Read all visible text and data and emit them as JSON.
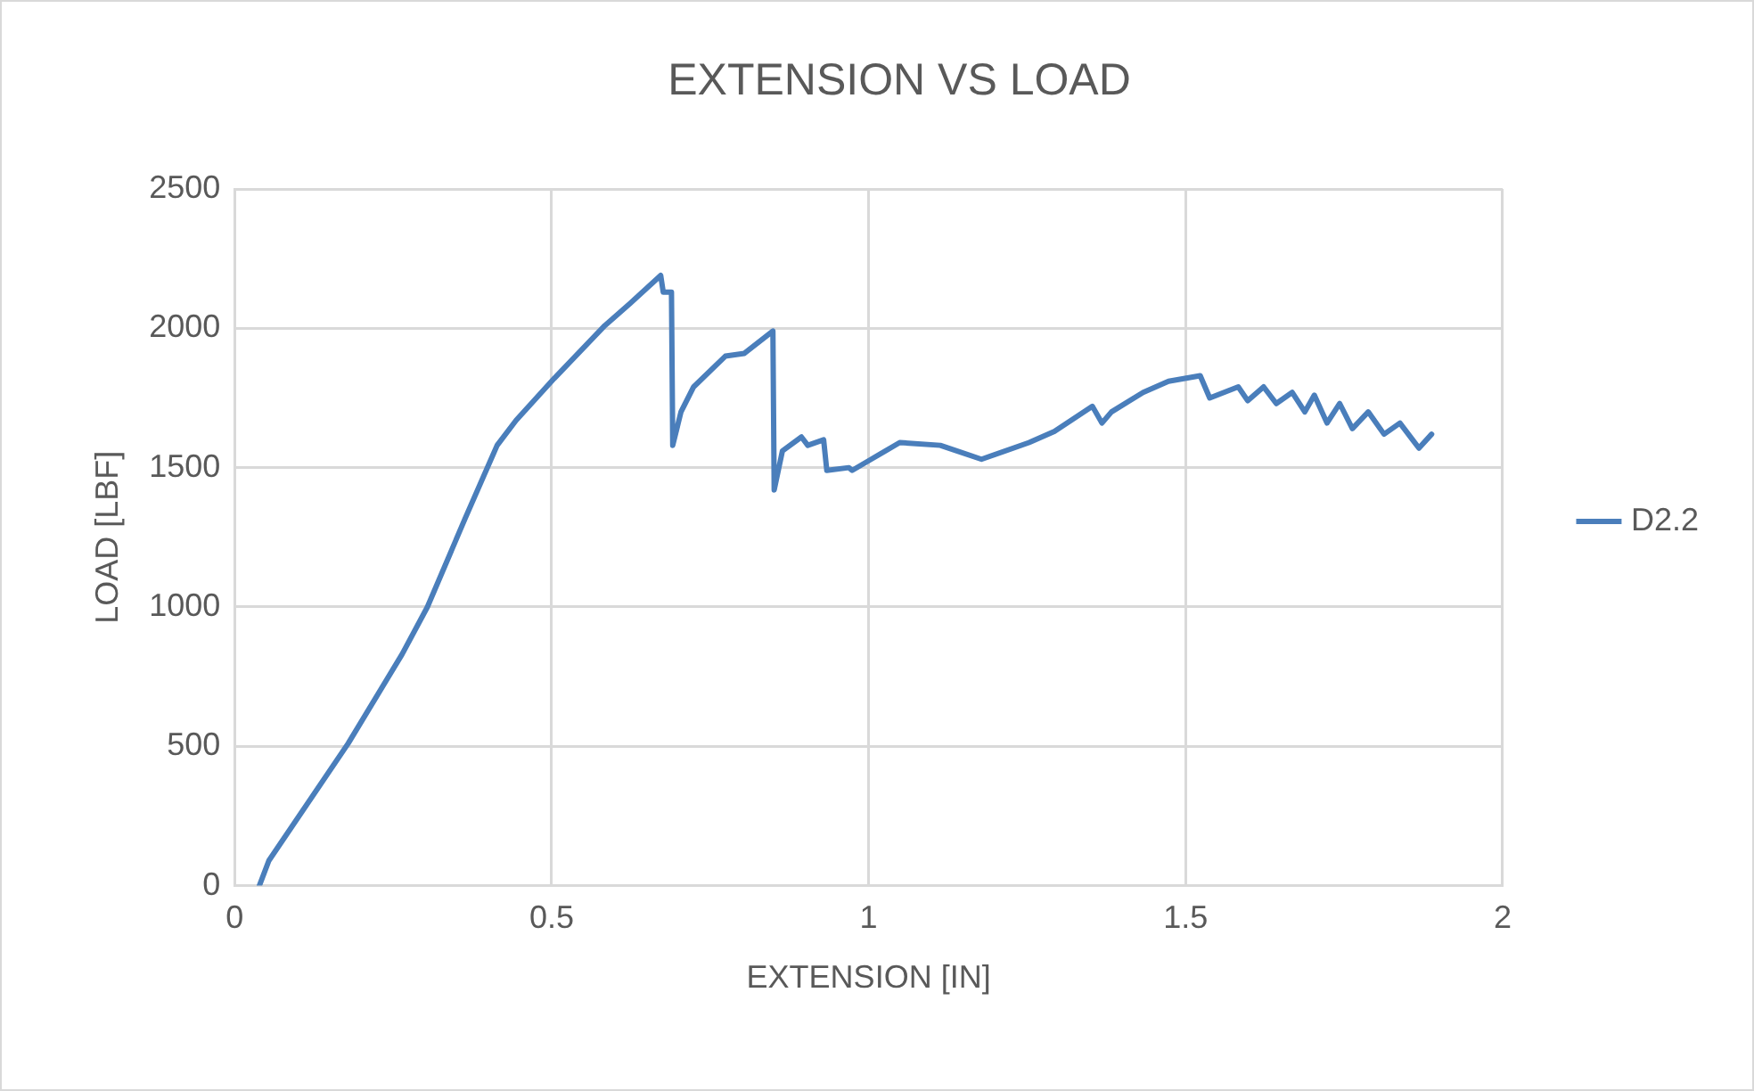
{
  "chart_data": {
    "type": "line",
    "title": "EXTENSION VS LOAD",
    "xlabel": "EXTENSION [IN]",
    "ylabel": "LOAD [LBF]",
    "xlim": [
      0,
      2
    ],
    "xticks": [
      0,
      0.5,
      1,
      1.5,
      2
    ],
    "ylim": [
      0,
      2500
    ],
    "yticks": [
      0,
      500,
      1000,
      1500,
      2000,
      2500
    ],
    "grid": true,
    "legend": "right",
    "marker": "none",
    "line_style": "solid",
    "series": [
      {
        "name": "D2.2",
        "color": "#4a7ebb",
        "x": [
          0.039,
          0.054,
          0.179,
          0.264,
          0.304,
          0.364,
          0.414,
          0.444,
          0.504,
          0.584,
          0.624,
          0.672,
          0.676,
          0.689,
          0.691,
          0.704,
          0.724,
          0.774,
          0.804,
          0.849,
          0.851,
          0.864,
          0.894,
          0.904,
          0.929,
          0.934,
          0.969,
          0.974,
          1.004,
          1.049,
          1.113,
          1.178,
          1.253,
          1.293,
          1.353,
          1.368,
          1.383,
          1.433,
          1.473,
          1.523,
          1.538,
          1.583,
          1.598,
          1.623,
          1.643,
          1.668,
          1.688,
          1.703,
          1.723,
          1.743,
          1.763,
          1.788,
          1.813,
          1.838,
          1.858,
          1.868,
          1.888
        ],
        "values": [
          0,
          90,
          510,
          830,
          1000,
          1320,
          1580,
          1670,
          1820,
          2010,
          2090,
          2190,
          2130,
          2130,
          1580,
          1700,
          1790,
          1900,
          1910,
          1990,
          1420,
          1560,
          1610,
          1580,
          1600,
          1490,
          1500,
          1490,
          1530,
          1590,
          1580,
          1530,
          1590,
          1630,
          1720,
          1660,
          1700,
          1770,
          1810,
          1830,
          1750,
          1790,
          1740,
          1790,
          1730,
          1770,
          1700,
          1760,
          1660,
          1730,
          1640,
          1700,
          1620,
          1660,
          1600,
          1570,
          1620
        ]
      }
    ]
  }
}
